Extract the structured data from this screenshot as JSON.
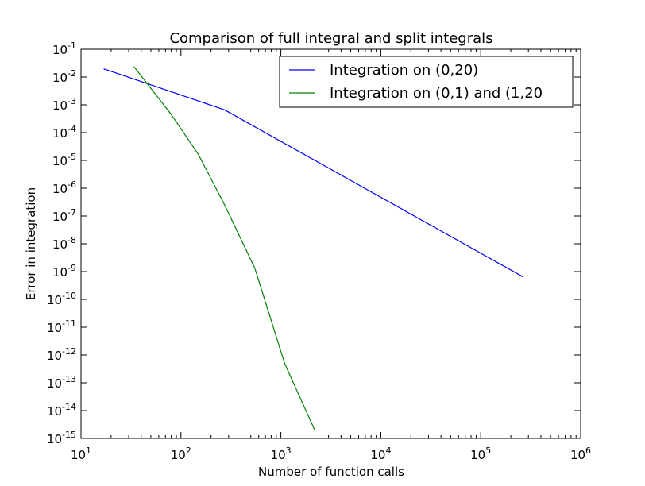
{
  "chart_data": {
    "type": "line",
    "title": "Comparison of full integral and split integrals",
    "xlabel": "Number of function calls",
    "ylabel": "Error in integration",
    "xscale": "log",
    "yscale": "log",
    "xlim": [
      10,
      1000000
    ],
    "ylim": [
      1e-15,
      0.1
    ],
    "grid": false,
    "legend_position": "top-right",
    "x_ticks": [
      {
        "base": "10",
        "exp": "1",
        "value": 10
      },
      {
        "base": "10",
        "exp": "2",
        "value": 100
      },
      {
        "base": "10",
        "exp": "3",
        "value": 1000
      },
      {
        "base": "10",
        "exp": "4",
        "value": 10000
      },
      {
        "base": "10",
        "exp": "5",
        "value": 100000
      },
      {
        "base": "10",
        "exp": "6",
        "value": 1000000
      }
    ],
    "y_ticks": [
      {
        "base": "10",
        "exp": "-1",
        "value": 0.1
      },
      {
        "base": "10",
        "exp": "-2",
        "value": 0.01
      },
      {
        "base": "10",
        "exp": "-3",
        "value": 0.001
      },
      {
        "base": "10",
        "exp": "-4",
        "value": 0.0001
      },
      {
        "base": "10",
        "exp": "-5",
        "value": 1e-05
      },
      {
        "base": "10",
        "exp": "-6",
        "value": 1e-06
      },
      {
        "base": "10",
        "exp": "-7",
        "value": 1e-07
      },
      {
        "base": "10",
        "exp": "-8",
        "value": 1e-08
      },
      {
        "base": "10",
        "exp": "-9",
        "value": 1e-09
      },
      {
        "base": "10",
        "exp": "-10",
        "value": 1e-10
      },
      {
        "base": "10",
        "exp": "-11",
        "value": 1e-11
      },
      {
        "base": "10",
        "exp": "-12",
        "value": 1e-12
      },
      {
        "base": "10",
        "exp": "-13",
        "value": 1e-13
      },
      {
        "base": "10",
        "exp": "-14",
        "value": 1e-14
      },
      {
        "base": "10",
        "exp": "-15",
        "value": 1e-15
      }
    ],
    "series": [
      {
        "name": "Integration on (0,20)",
        "color": "#0000ff",
        "x": [
          17,
          273,
          262145
        ],
        "y": [
          0.0195,
          0.00066,
          6.6e-10
        ]
      },
      {
        "name": "Integration on (0,1) and (1,20",
        "color": "#008000",
        "x": [
          34,
          80,
          150,
          280,
          550,
          1090,
          2180
        ],
        "y": [
          0.023,
          0.00045,
          1.6e-05,
          2.1e-07,
          1.3e-09,
          5e-13,
          2e-15
        ]
      }
    ]
  }
}
